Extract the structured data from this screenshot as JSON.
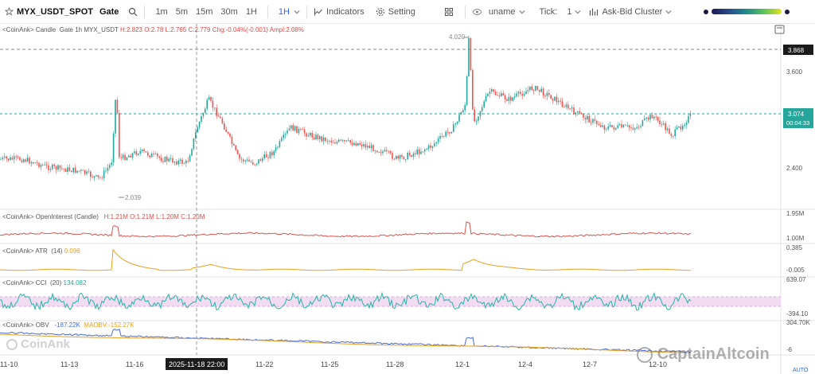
{
  "toolbar": {
    "symbol": "MYX_USDT_SPOT",
    "exchange": "Gate",
    "intervals": [
      "1m",
      "5m",
      "15m",
      "30m",
      "1H"
    ],
    "active_interval": "1H",
    "indicators_label": "Indicators",
    "setting_label": "Setting",
    "user_label": "uname",
    "tick_label": "Tick:",
    "tick_value": "1",
    "cluster_label": "Ask-Bid Cluster"
  },
  "main_legend": {
    "source": "<CoinAnk>",
    "type": "Candle",
    "desc": "Gate 1h MYX_USDT",
    "h": "H:2.823",
    "o": "O:2.78",
    "l": "L:2.765",
    "c": "C:2.779",
    "chg": "Chg:-0.04%(-0.001)",
    "ampl": "Ampl:2.08%"
  },
  "price_axis": {
    "labels": [
      "3.600",
      "2.400"
    ],
    "marked_high": "3.868",
    "current_price": "3.074",
    "countdown": "00:04:33",
    "peak_label": "4.020",
    "low_label": "2.039"
  },
  "panes": {
    "oi": {
      "title": "<CoinAnk> OpenInterest (Candle)",
      "h": "H:1.21M",
      "o": "O:1.21M",
      "l": "L:1.20M",
      "c": "C:1.20M",
      "axis": [
        "1.95M",
        "1.00M"
      ]
    },
    "atr": {
      "title": "<CoinAnk> ATR",
      "param": "(14)",
      "value": "0.096",
      "axis": [
        "0.385",
        "-0.005"
      ]
    },
    "cci": {
      "title": "<CoinAnk> CCI",
      "param": "(20)",
      "value": "134.082",
      "axis": [
        "639.07",
        "-394.10"
      ]
    },
    "obv": {
      "title": "<CoinAnk> OBV",
      "value": "-187.22K",
      "ma_label": "MAOBV:",
      "ma_value": "-152.27K",
      "axis": [
        "304.70K",
        "-6"
      ]
    }
  },
  "x_axis": {
    "labels": [
      "11-10",
      "11-13",
      "11-16",
      "11-22",
      "11-25",
      "11-28",
      "12-1",
      "12-4",
      "12-7",
      "12-10"
    ],
    "crosshair_time": "2025-11-18 22:00",
    "auto": "AUTO"
  },
  "watermarks": {
    "coinank": "CoinAnk",
    "captain": "CaptainAltcoin"
  },
  "colors": {
    "up": "#26a69a",
    "down": "#ef5350",
    "accent": "#2962ff",
    "atr": "#e8a020",
    "cci": "#26b5a8",
    "obv": "#4a6cd4"
  }
}
